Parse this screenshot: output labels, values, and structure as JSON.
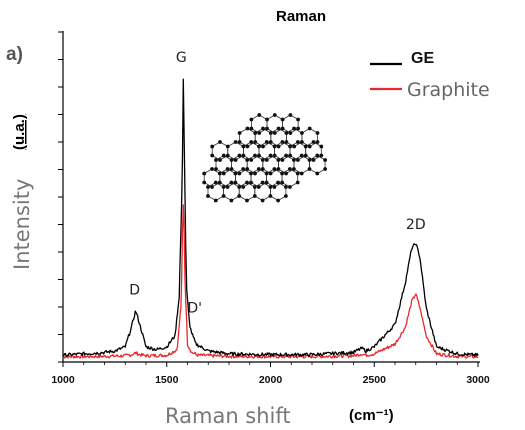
{
  "chart_data": {
    "type": "line",
    "title": "Raman",
    "panel_label": "a)",
    "xlabel": "Raman shift",
    "xlabel_unit": "(cm⁻¹)",
    "ylabel": "Intensity",
    "ylabel_unit": "(u.a.)",
    "xlim": [
      1000,
      3000
    ],
    "xticks": [
      1000,
      1500,
      2000,
      2500,
      3000
    ],
    "ylim": [
      0,
      1
    ],
    "grid": false,
    "legend_position": "top-right",
    "series": [
      {
        "name": "GE",
        "color": "#000000",
        "x": [
          1000,
          1100,
          1200,
          1250,
          1300,
          1330,
          1350,
          1370,
          1400,
          1450,
          1500,
          1540,
          1560,
          1575,
          1580,
          1585,
          1595,
          1610,
          1620,
          1640,
          1700,
          1800,
          2000,
          2200,
          2400,
          2440,
          2460,
          2500,
          2600,
          2650,
          2680,
          2700,
          2720,
          2750,
          2800,
          2900,
          3000
        ],
        "y": [
          0.01,
          0.015,
          0.02,
          0.025,
          0.04,
          0.11,
          0.17,
          0.12,
          0.04,
          0.03,
          0.04,
          0.08,
          0.22,
          0.65,
          1.0,
          0.72,
          0.25,
          0.12,
          0.09,
          0.05,
          0.025,
          0.015,
          0.012,
          0.012,
          0.02,
          0.035,
          0.025,
          0.04,
          0.12,
          0.27,
          0.39,
          0.41,
          0.36,
          0.18,
          0.04,
          0.015,
          0.01
        ]
      },
      {
        "name": "Graphite",
        "color": "#e8282c",
        "x": [
          1000,
          1100,
          1200,
          1300,
          1330,
          1350,
          1370,
          1400,
          1500,
          1550,
          1570,
          1578,
          1582,
          1587,
          1600,
          1620,
          1650,
          1800,
          2000,
          2200,
          2400,
          2440,
          2460,
          2500,
          2600,
          2650,
          2680,
          2700,
          2720,
          2750,
          2800,
          2900,
          3000
        ],
        "y": [
          0.005,
          0.005,
          0.006,
          0.008,
          0.012,
          0.018,
          0.012,
          0.008,
          0.01,
          0.03,
          0.2,
          0.54,
          0.55,
          0.3,
          0.05,
          0.02,
          0.01,
          0.006,
          0.005,
          0.005,
          0.008,
          0.015,
          0.01,
          0.015,
          0.05,
          0.11,
          0.2,
          0.23,
          0.18,
          0.08,
          0.015,
          0.006,
          0.004
        ]
      }
    ],
    "peak_labels": [
      {
        "text": "D",
        "x": 1350,
        "y": 0.17
      },
      {
        "text": "G",
        "x": 1580,
        "y": 1.0
      },
      {
        "text": "D'",
        "x": 1625,
        "y": 0.12
      },
      {
        "text": "2D",
        "x": 2700,
        "y": 0.41
      }
    ]
  }
}
